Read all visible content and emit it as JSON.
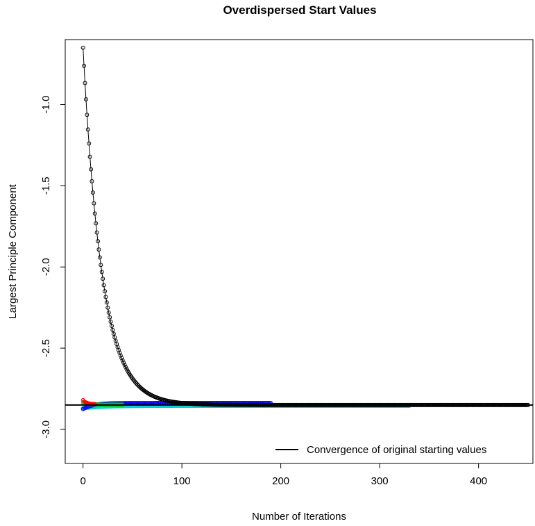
{
  "chart_data": {
    "type": "line",
    "title": "Overdispersed Start Values",
    "xlabel": "Number of Iterations",
    "ylabel": "Largest Principle Component",
    "xlim": [
      -18,
      455
    ],
    "ylim": [
      -3.21,
      -0.6
    ],
    "x_ticks": [
      0,
      100,
      200,
      300,
      400
    ],
    "y_ticks": [
      -1.0,
      -1.5,
      -2.0,
      -2.5,
      -3.0
    ],
    "x_tick_labels": [
      "0",
      "100",
      "200",
      "300",
      "400"
    ],
    "y_tick_labels": [
      "-1.0",
      "-1.5",
      "-2.0",
      "-2.5",
      "-3.0"
    ],
    "reference_line": {
      "y": -2.85,
      "color": "#000000"
    },
    "legend": {
      "position": "bottom-right",
      "entries": [
        "Convergence of original starting values"
      ]
    },
    "series": [
      {
        "color": "#000000",
        "marker": "circle",
        "start_value": -0.65,
        "asymptote": -2.85,
        "rate": 0.052,
        "n_iterations": 450
      },
      {
        "color": "#ff0000",
        "marker": "circle",
        "start_value": -2.82,
        "asymptote": -2.845,
        "rate": 0.3,
        "n_iterations": 12
      },
      {
        "color": "#00cd00",
        "marker": "circle",
        "start_value": -2.835,
        "asymptote": -2.848,
        "rate": 0.2,
        "n_iterations": 40
      },
      {
        "color": "#0000ff",
        "marker": "circle",
        "start_value": -2.875,
        "asymptote": -2.838,
        "rate": 0.1,
        "n_iterations": 190
      },
      {
        "color": "#00ced1",
        "marker": "circle",
        "start_value": -2.87,
        "asymptote": -2.855,
        "rate": 0.05,
        "n_iterations": 330
      }
    ]
  }
}
